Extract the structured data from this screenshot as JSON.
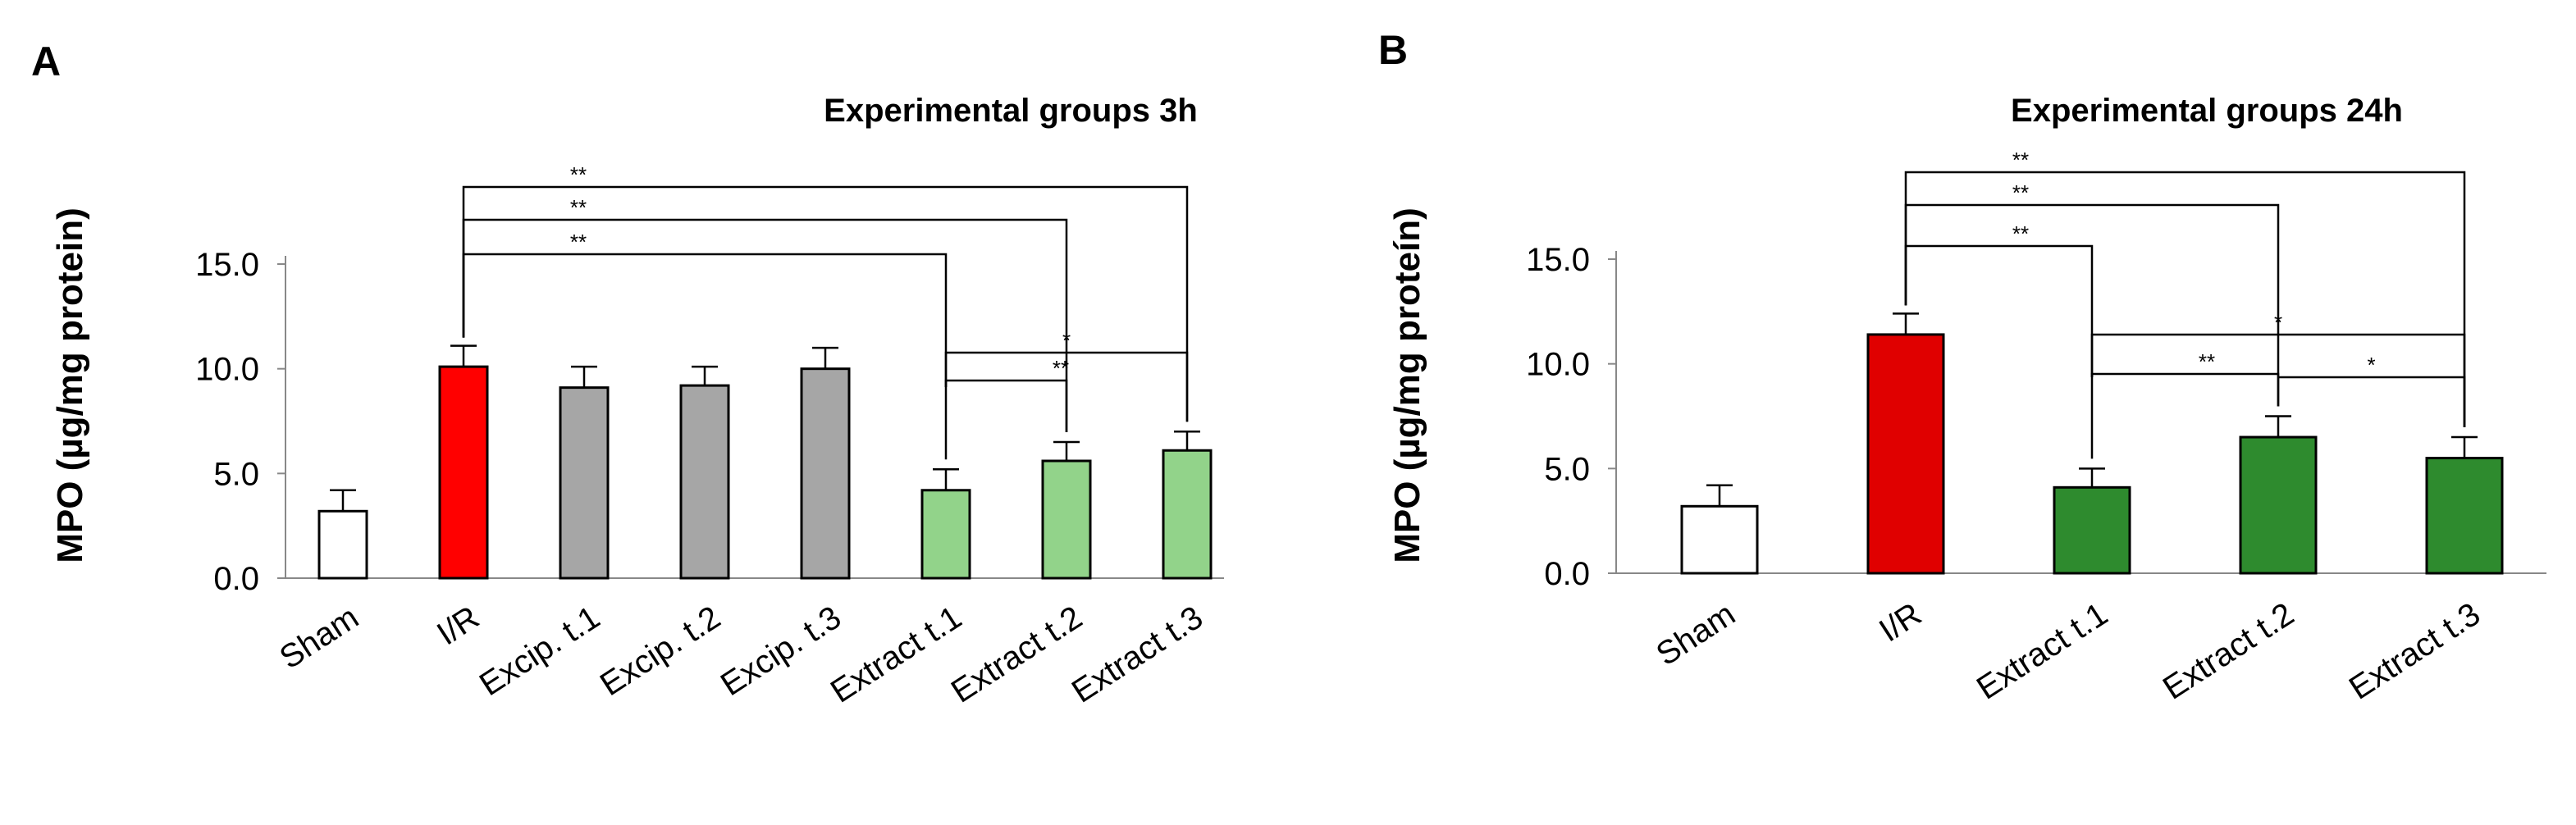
{
  "colors": {
    "sham": "#ffffff",
    "ir_a": "#ff0000",
    "ir_b": "#e00000",
    "excipient": "#a6a6a6",
    "extract_a": "#92d38a",
    "extract_b": "#2e8b2e",
    "stroke": "#000000"
  },
  "chart_data": [
    {
      "type": "bar",
      "panel_label": "A",
      "title": "Experimental groups 3h",
      "ylabel": "MPO (µg/mg protein)",
      "ylim": [
        0,
        15
      ],
      "yticks": [
        "0.0",
        "5.0",
        "10.0",
        "15.0"
      ],
      "categories": [
        "Sham",
        "I/R",
        "Excip. t.1",
        "Excip. t.2",
        "Excip. t.3",
        "Extract t.1",
        "Extract t.2",
        "Extract t.3"
      ],
      "values": [
        3.2,
        10.1,
        9.1,
        9.2,
        10.0,
        4.2,
        5.6,
        6.1
      ],
      "errors": [
        1.0,
        1.0,
        1.0,
        0.9,
        1.0,
        1.0,
        0.9,
        0.9
      ],
      "bar_colors": [
        "sham",
        "ir_a",
        "excipient",
        "excipient",
        "excipient",
        "extract_a",
        "extract_a",
        "extract_a"
      ],
      "significance": [
        {
          "from": 1,
          "to": 7,
          "label": "**"
        },
        {
          "from": 1,
          "to": 6,
          "label": "**"
        },
        {
          "from": 1,
          "to": 5,
          "label": "**"
        },
        {
          "from": 5,
          "to": 7,
          "label": "*"
        },
        {
          "from": 5,
          "to": 6,
          "label": "**"
        }
      ],
      "grid": false
    },
    {
      "type": "bar",
      "panel_label": "B",
      "title": "Experimental groups 24h",
      "ylabel": "MPO (µg/mg proteín)",
      "ylim": [
        0,
        15
      ],
      "yticks": [
        "0.0",
        "5.0",
        "10.0",
        "15.0"
      ],
      "categories": [
        "Sham",
        "I/R",
        "Extract t.1",
        "Extract t.2",
        "Extract t.3"
      ],
      "values": [
        3.2,
        11.4,
        4.1,
        6.5,
        5.5
      ],
      "errors": [
        1.0,
        1.0,
        0.9,
        1.0,
        1.0
      ],
      "bar_colors": [
        "sham",
        "ir_b",
        "extract_b",
        "extract_b",
        "extract_b"
      ],
      "significance": [
        {
          "from": 1,
          "to": 4,
          "label": "**"
        },
        {
          "from": 1,
          "to": 3,
          "label": "**"
        },
        {
          "from": 1,
          "to": 2,
          "label": "**"
        },
        {
          "from": 2,
          "to": 4,
          "label": "*"
        },
        {
          "from": 2,
          "to": 3,
          "label": "**"
        },
        {
          "from": 3,
          "to": 4,
          "label": "*"
        }
      ],
      "grid": false
    }
  ]
}
